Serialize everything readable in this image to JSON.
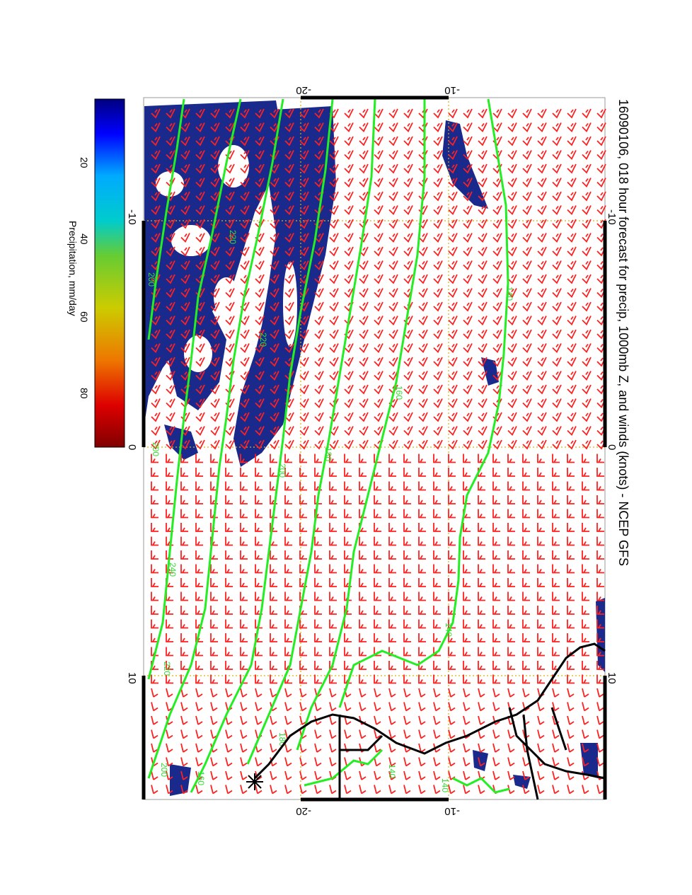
{
  "title": "16090106, 018 hour forecast for precip, 1000mb Z, and winds (knots) - NCEP GFS",
  "axes": {
    "left_ticks": [
      "-10",
      "0",
      "10"
    ],
    "right_ticks": [
      "-10",
      "0",
      "10"
    ],
    "top_ticks": [
      "-20",
      "-10"
    ],
    "bottom_ticks": [
      "-20",
      "-10"
    ]
  },
  "colorbar": {
    "label": "Precipitation, mm/day",
    "ticks": [
      "20",
      "40",
      "60",
      "80"
    ],
    "colors": [
      "#000080",
      "#0000ff",
      "#00aaff",
      "#00cccc",
      "#66cc33",
      "#cccc00",
      "#ee7700",
      "#dd0000",
      "#800000"
    ]
  },
  "contours": {
    "color": "#22ee22",
    "labels": [
      "140",
      "140",
      "140",
      "140",
      "140",
      "160",
      "160",
      "180",
      "180",
      "200",
      "200",
      "220",
      "220",
      "220",
      "240",
      "200",
      "200",
      "200",
      "220",
      "180",
      "160",
      "200"
    ]
  },
  "colors": {
    "precip": "#1a2a8c",
    "wind_barb": "#ff2020",
    "coastline": "#000000",
    "grid": "#e0b000",
    "contour": "#22ee22"
  },
  "icons": [
    "wind-barb-icon",
    "star-marker-icon"
  ]
}
